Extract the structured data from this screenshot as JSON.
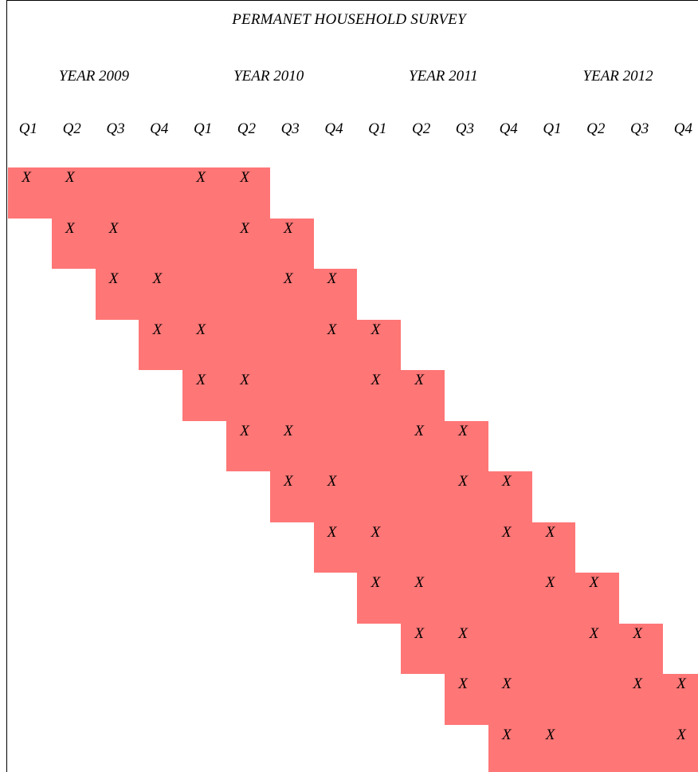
{
  "title": "PERMANET HOUSEHOLD SURVEY",
  "years": [
    "YEAR 2009",
    "YEAR 2010",
    "YEAR 2011",
    "YEAR 2012"
  ],
  "quarters": [
    "Q1",
    "Q2",
    "Q3",
    "Q4",
    "Q1",
    "Q2",
    "Q3",
    "Q4",
    "Q1",
    "Q2",
    "Q3",
    "Q4",
    "Q1",
    "Q2",
    "Q3",
    "Q4"
  ],
  "mark": "X",
  "band_color": "#ff7676",
  "rows": [
    {
      "marks": [
        0,
        1,
        4,
        5
      ]
    },
    {
      "marks": [
        1,
        2,
        5,
        6
      ]
    },
    {
      "marks": [
        2,
        3,
        6,
        7
      ]
    },
    {
      "marks": [
        3,
        4,
        7,
        8
      ]
    },
    {
      "marks": [
        4,
        5,
        8,
        9
      ]
    },
    {
      "marks": [
        5,
        6,
        9,
        10
      ]
    },
    {
      "marks": [
        6,
        7,
        10,
        11
      ]
    },
    {
      "marks": [
        7,
        8,
        11,
        12
      ]
    },
    {
      "marks": [
        8,
        9,
        12,
        13
      ]
    },
    {
      "marks": [
        9,
        10,
        13,
        14
      ]
    },
    {
      "marks": [
        10,
        11,
        14,
        15
      ]
    },
    {
      "marks": [
        11,
        12,
        15
      ]
    }
  ]
}
